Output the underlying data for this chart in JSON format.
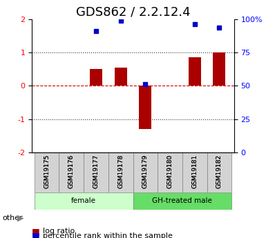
{
  "title": "GDS862 / 2.2.12.4",
  "samples": [
    "GSM19175",
    "GSM19176",
    "GSM19177",
    "GSM19178",
    "GSM19179",
    "GSM19180",
    "GSM19181",
    "GSM19182"
  ],
  "log_ratio": [
    0.0,
    0.0,
    0.5,
    0.55,
    -1.3,
    0.0,
    0.85,
    1.0
  ],
  "percentile_rank": [
    null,
    null,
    1.65,
    1.95,
    0.05,
    null,
    1.85,
    1.75
  ],
  "groups": [
    {
      "label": "female",
      "start": 0,
      "end": 4,
      "color": "#ccffcc"
    },
    {
      "label": "GH-treated male",
      "start": 4,
      "end": 8,
      "color": "#66dd66"
    }
  ],
  "ylim": [
    -2,
    2
  ],
  "yticks_left": [
    -2,
    -1,
    0,
    1,
    2
  ],
  "yticks_right": [
    0,
    25,
    50,
    75,
    100
  ],
  "yticks_right_pos": [
    -2,
    -1,
    0,
    1,
    2
  ],
  "bar_color": "#aa0000",
  "dot_color": "#0000cc",
  "zero_line_color": "#cc0000",
  "dotted_line_color": "#333333",
  "background_color": "#ffffff",
  "title_fontsize": 13,
  "tick_fontsize": 8,
  "legend_fontsize": 8,
  "bar_width": 0.5
}
